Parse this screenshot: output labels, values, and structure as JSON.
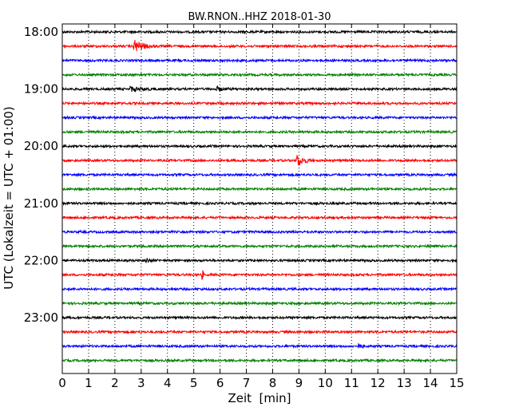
{
  "chart_data": {
    "type": "line",
    "title": "BW.RNON..HHZ 2018-01-30",
    "xlabel": "Zeit  [min]",
    "ylabel": "UTC (Lokalzeit = UTC + 01:00)",
    "xlim": [
      0,
      15
    ],
    "x_ticks": [
      "0",
      "1",
      "2",
      "3",
      "4",
      "5",
      "6",
      "7",
      "8",
      "9",
      "10",
      "11",
      "12",
      "13",
      "14",
      "15"
    ],
    "y_tick_labels": [
      "18:00",
      "19:00",
      "20:00",
      "21:00",
      "22:00",
      "23:00"
    ],
    "grid": "vertical dotted",
    "trace_colors": [
      "#000000",
      "#ff0000",
      "#0000ff",
      "#007f00"
    ],
    "traces": [
      {
        "start": "18:00",
        "events": []
      },
      {
        "start": "18:15",
        "events": [
          {
            "t_min": 2.75,
            "amp": 1.0,
            "dur_min": 0.9
          }
        ]
      },
      {
        "start": "18:30",
        "events": []
      },
      {
        "start": "18:45",
        "events": []
      },
      {
        "start": "19:00",
        "events": [
          {
            "t_min": 2.6,
            "amp": 0.35,
            "dur_min": 1.2
          },
          {
            "t_min": 5.9,
            "amp": 0.3,
            "dur_min": 0.6
          }
        ]
      },
      {
        "start": "19:15",
        "events": []
      },
      {
        "start": "19:30",
        "events": []
      },
      {
        "start": "19:45",
        "events": []
      },
      {
        "start": "20:00",
        "events": []
      },
      {
        "start": "20:15",
        "events": [
          {
            "t_min": 8.95,
            "amp": 1.0,
            "dur_min": 0.6
          }
        ]
      },
      {
        "start": "20:30",
        "events": []
      },
      {
        "start": "20:45",
        "events": []
      },
      {
        "start": "21:00",
        "events": []
      },
      {
        "start": "21:15",
        "events": []
      },
      {
        "start": "21:30",
        "events": []
      },
      {
        "start": "21:45",
        "events": []
      },
      {
        "start": "22:00",
        "events": [
          {
            "t_min": 3.2,
            "amp": 0.35,
            "dur_min": 0.4
          }
        ]
      },
      {
        "start": "22:15",
        "events": [
          {
            "t_min": 5.35,
            "amp": 0.7,
            "dur_min": 0.05
          }
        ]
      },
      {
        "start": "22:30",
        "events": []
      },
      {
        "start": "22:45",
        "events": []
      },
      {
        "start": "23:00",
        "events": []
      },
      {
        "start": "23:15",
        "events": []
      },
      {
        "start": "23:30",
        "events": [
          {
            "t_min": 11.3,
            "amp": 0.3,
            "dur_min": 0.3
          }
        ]
      },
      {
        "start": "23:45",
        "events": []
      }
    ]
  }
}
